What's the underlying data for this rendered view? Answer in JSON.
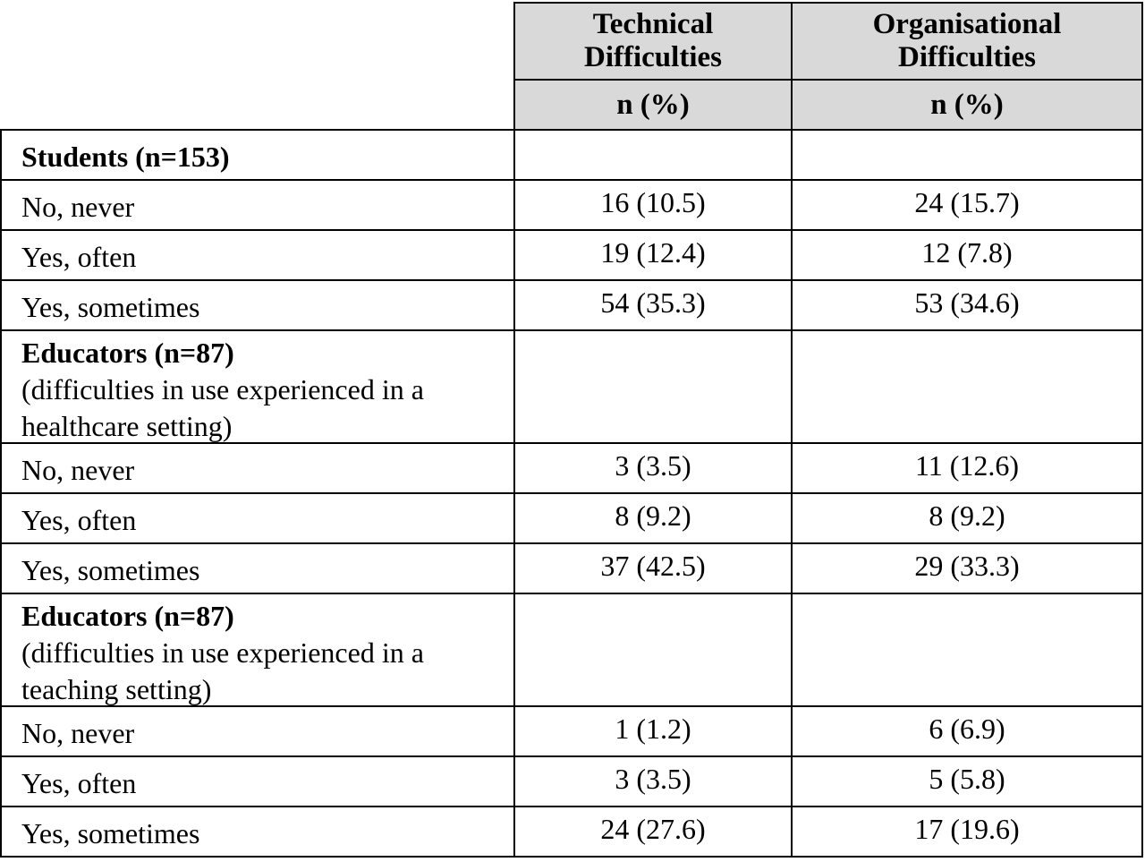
{
  "table": {
    "header": [
      "Technical Difficulties",
      "Organisational Difficulties"
    ],
    "units": [
      "n (%)",
      "n (%)"
    ],
    "rows": [
      {
        "group": "Students (n=153)"
      },
      {
        "label": "No, never",
        "values": [
          "16 (10.5)",
          "24 (15.7)"
        ]
      },
      {
        "label": "Yes, often",
        "values": [
          "19 (12.4)",
          "12 (7.8)"
        ]
      },
      {
        "label": "Yes, sometimes",
        "values": [
          "54 (35.3)",
          "53 (34.6)"
        ]
      },
      {
        "group": "Educators (n=87)",
        "note": "(difficulties in use experienced in a healthcare setting)"
      },
      {
        "label": "No, never",
        "values": [
          "3 (3.5)",
          "11 (12.6)"
        ]
      },
      {
        "label": "Yes, often",
        "values": [
          "8 (9.2)",
          "8 (9.2)"
        ]
      },
      {
        "label": "Yes, sometimes",
        "values": [
          "37 (42.5)",
          "29 (33.3)"
        ]
      },
      {
        "group": "Educators (n=87)",
        "note": "(difficulties in use experienced in a teaching setting)"
      },
      {
        "label": "No, never",
        "values": [
          "1 (1.2)",
          "6 (6.9)"
        ]
      },
      {
        "label": "Yes, often",
        "values": [
          "3 (3.5)",
          "5 (5.8)"
        ]
      },
      {
        "label": "Yes, sometimes",
        "values": [
          "24 (27.6)",
          "17 (19.6)"
        ]
      }
    ]
  }
}
